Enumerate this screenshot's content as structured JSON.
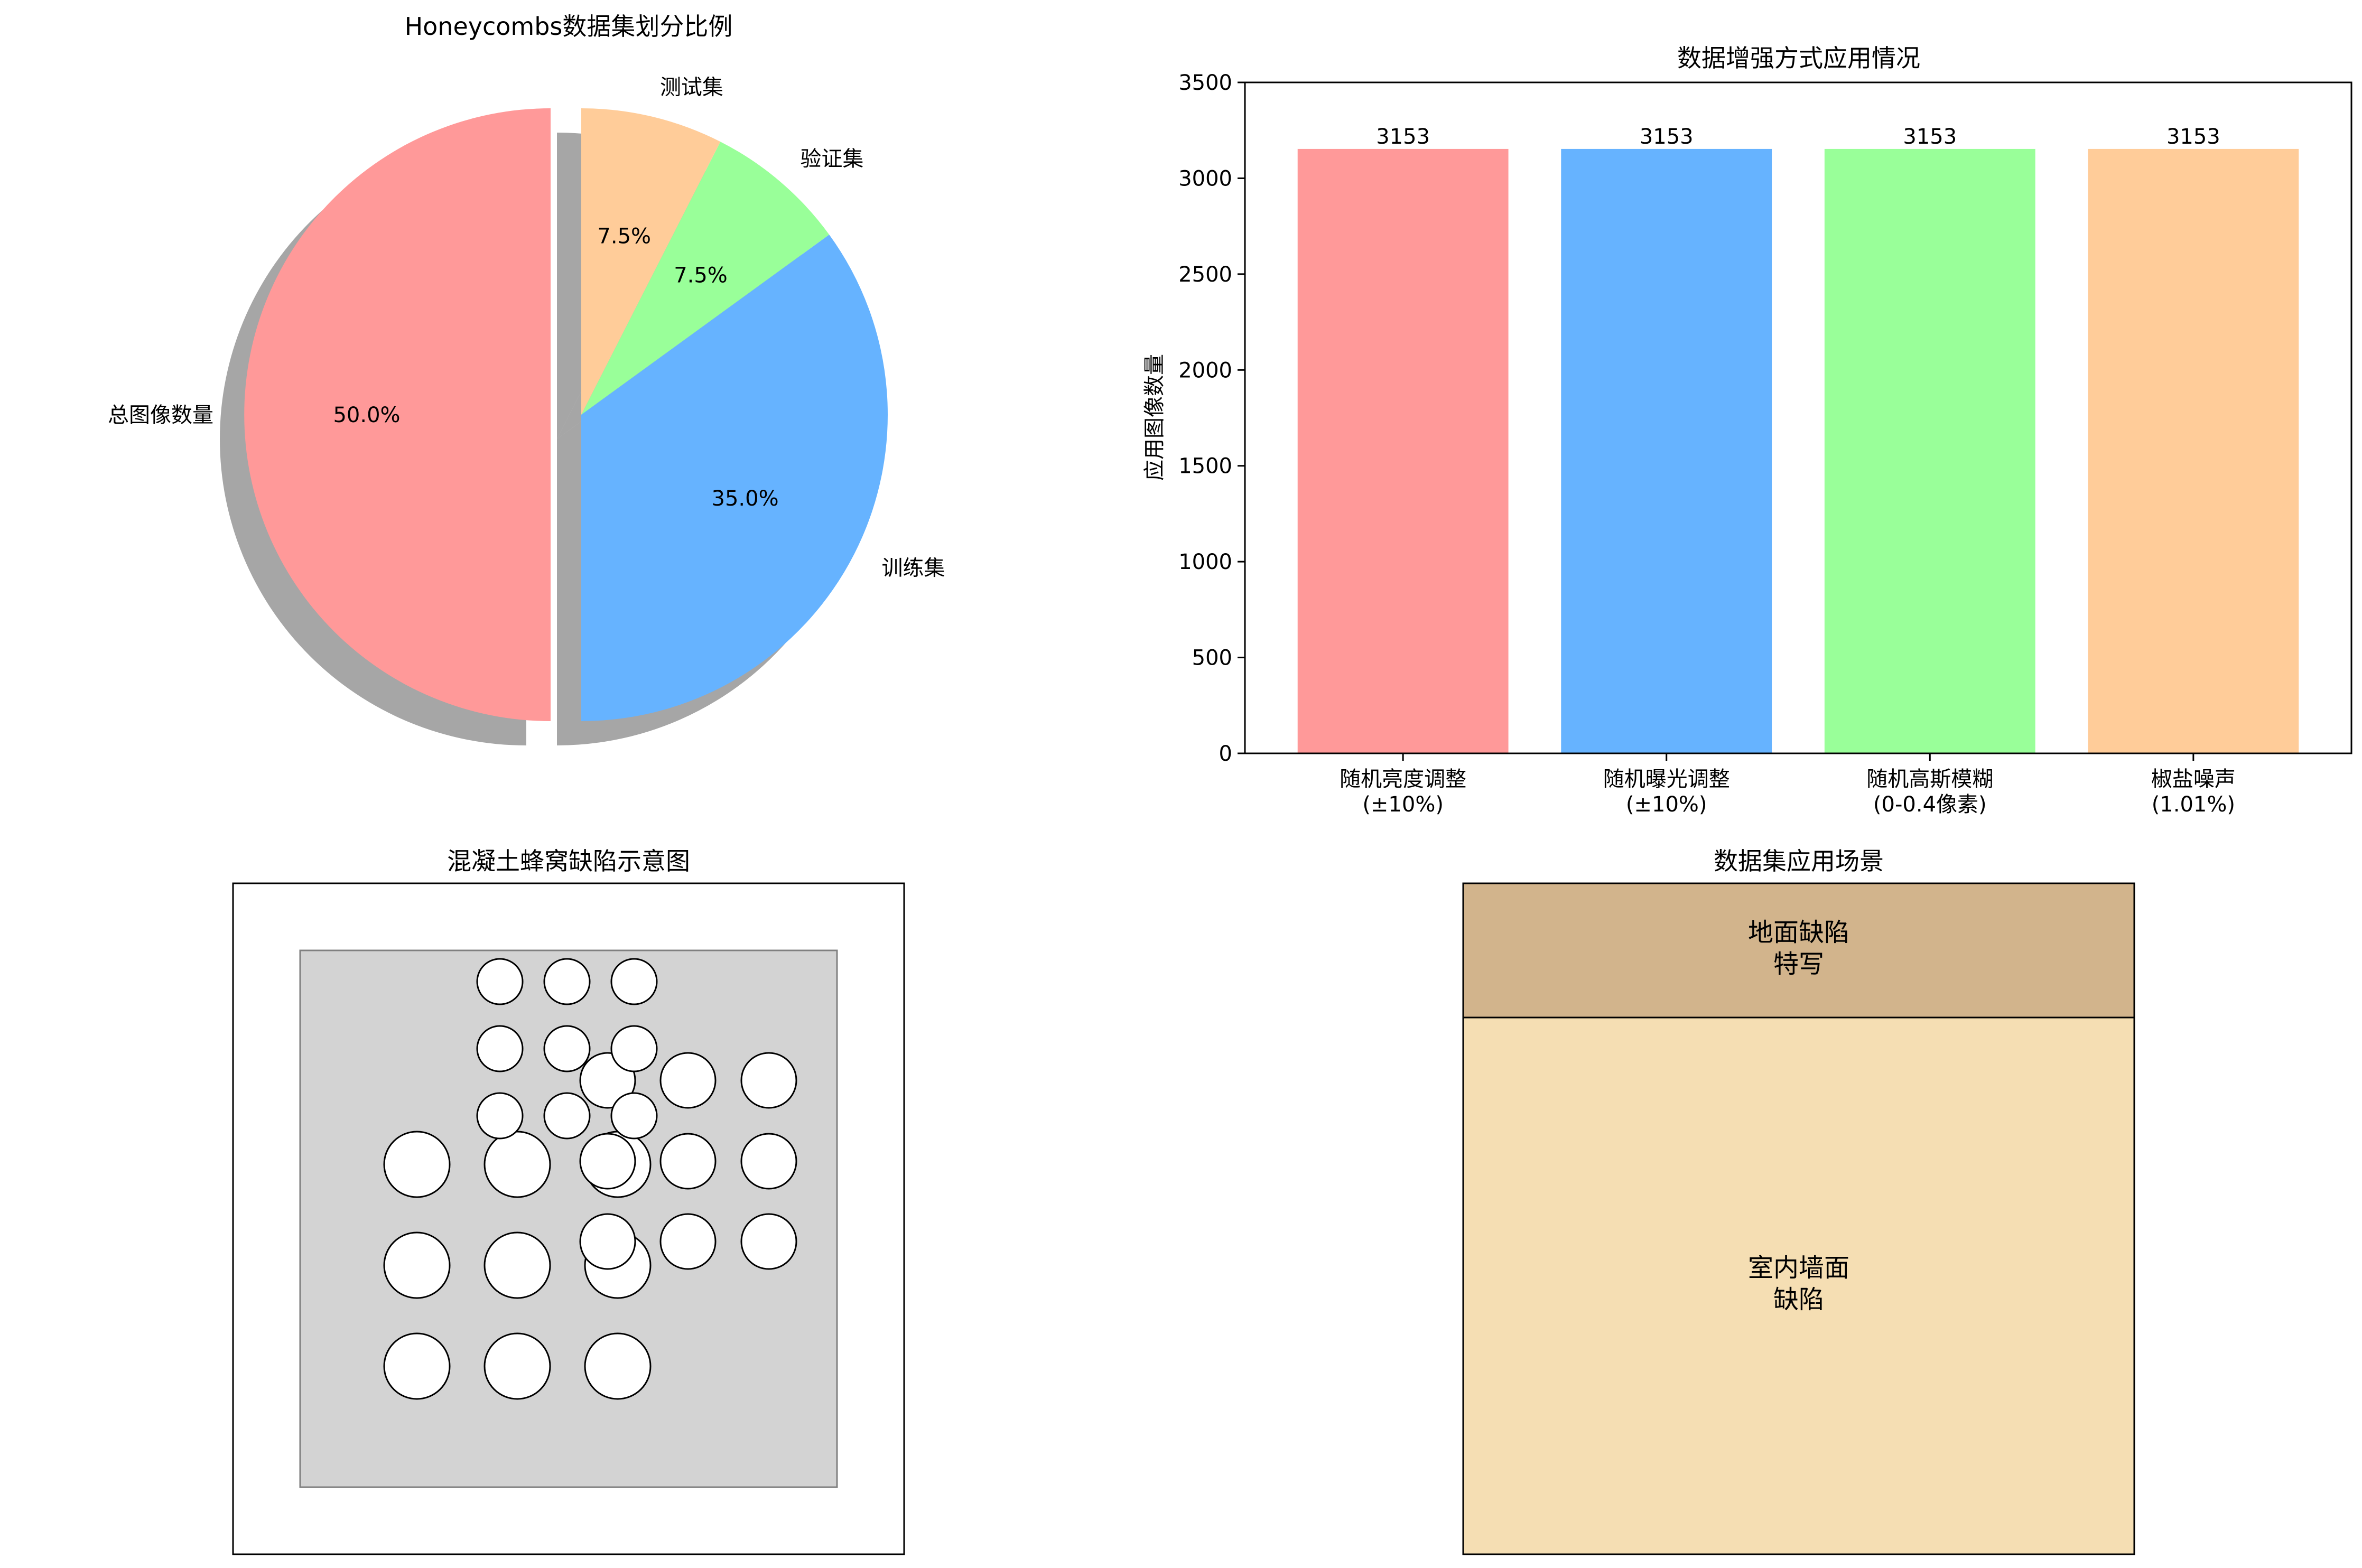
{
  "chart_data": [
    {
      "type": "pie",
      "title": "Honeycombs数据集划分比例",
      "slices": [
        {
          "label": "总图像数量",
          "value": 50.0,
          "pct_label": "50.0%",
          "color": "#ff9999",
          "explode": true
        },
        {
          "label": "训练集",
          "value": 35.0,
          "pct_label": "35.0%",
          "color": "#66b3ff",
          "explode": false
        },
        {
          "label": "验证集",
          "value": 7.5,
          "pct_label": "7.5%",
          "color": "#99ff99",
          "explode": false
        },
        {
          "label": "测试集",
          "value": 7.5,
          "pct_label": "7.5%",
          "color": "#ffcc99",
          "explode": false
        }
      ],
      "start_angle_deg": 90,
      "counterclockwise": true,
      "shadow": true
    },
    {
      "type": "bar",
      "title": "数据增强方式应用情况",
      "categories": [
        "随机亮度调整\n(±10%)",
        "随机曝光调整\n(±10%)",
        "随机高斯模糊\n(0-0.4像素)",
        "椒盐噪声\n(1.01%)"
      ],
      "values": [
        3153,
        3153,
        3153,
        3153
      ],
      "value_labels": [
        "3153",
        "3153",
        "3153",
        "3153"
      ],
      "colors": [
        "#ff9999",
        "#66b3ff",
        "#99ff99",
        "#ffcc99"
      ],
      "xlabel": "",
      "ylabel": "应用图像数量",
      "ylim": [
        0,
        3500
      ],
      "yticks": [
        0,
        500,
        1000,
        1500,
        2000,
        2500,
        3000,
        3500
      ]
    },
    {
      "type": "diagram",
      "title": "混凝土蜂窝缺陷示意图",
      "wall_color": "#d3d3d3",
      "hole_color": "#ffffff"
    },
    {
      "type": "diagram",
      "title": "数据集应用场景",
      "regions": [
        {
          "label": "地面缺陷\n特写",
          "color": "#d2b48c"
        },
        {
          "label": "室内墙面\n缺陷",
          "color": "#f5deb3"
        }
      ]
    }
  ]
}
